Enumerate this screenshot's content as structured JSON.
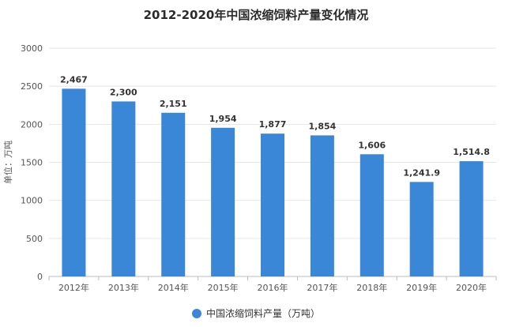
{
  "chart_data": {
    "type": "bar",
    "title": "2012-2020年中国浓缩饲料产量变化情况",
    "ylabel": "单位：万吨",
    "xlabel": "",
    "categories": [
      "2012年",
      "2013年",
      "2014年",
      "2015年",
      "2016年",
      "2017年",
      "2018年",
      "2019年",
      "2020年"
    ],
    "values": [
      2467,
      2300,
      2151,
      1954,
      1877,
      1854,
      1606,
      1241.9,
      1514.8
    ],
    "value_labels": [
      "2,467",
      "2,300",
      "2,151",
      "1,954",
      "1,877",
      "1,854",
      "1,606",
      "1,241.9",
      "1,514.8"
    ],
    "ylim": [
      0,
      3000
    ],
    "yticks": [
      0,
      500,
      1000,
      1500,
      2000,
      2500,
      3000
    ],
    "grid": true,
    "legend_position": "bottom",
    "series": [
      {
        "name": "中国浓缩饲料产量（万吨）",
        "color": "#3a87d8"
      }
    ]
  }
}
